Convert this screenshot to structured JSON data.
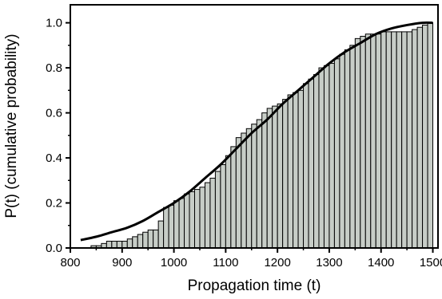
{
  "chart_data": {
    "type": "bar",
    "subtype": "cumulative histogram with fitted curve",
    "title": "",
    "xlabel": "Propagation time (t)",
    "ylabel": "P(t) (cumulative probability)",
    "xlim": [
      800,
      1510
    ],
    "ylim": [
      0,
      1.08
    ],
    "x_ticks": [
      "800",
      "900",
      "1000",
      "1100",
      "1200",
      "1300",
      "1400",
      "1500"
    ],
    "y_ticks": [
      "0.0",
      "0.2",
      "0.4",
      "0.6",
      "0.8",
      "1.0"
    ],
    "bin_width": 10,
    "bin_starts": [
      820,
      830,
      840,
      850,
      860,
      870,
      880,
      890,
      900,
      910,
      920,
      930,
      940,
      950,
      960,
      970,
      980,
      990,
      1000,
      1010,
      1020,
      1030,
      1040,
      1050,
      1060,
      1070,
      1080,
      1090,
      1100,
      1110,
      1120,
      1130,
      1140,
      1150,
      1160,
      1170,
      1180,
      1190,
      1200,
      1210,
      1220,
      1230,
      1240,
      1250,
      1260,
      1270,
      1280,
      1290,
      1300,
      1310,
      1320,
      1330,
      1340,
      1350,
      1360,
      1370,
      1380,
      1390,
      1400,
      1410,
      1420,
      1430,
      1440,
      1450,
      1460,
      1470,
      1480,
      1490
    ],
    "values": [
      0.0,
      0.0,
      0.01,
      0.01,
      0.02,
      0.03,
      0.03,
      0.03,
      0.03,
      0.04,
      0.05,
      0.06,
      0.07,
      0.08,
      0.08,
      0.12,
      0.18,
      0.19,
      0.21,
      0.22,
      0.24,
      0.25,
      0.26,
      0.27,
      0.29,
      0.31,
      0.34,
      0.37,
      0.41,
      0.45,
      0.49,
      0.51,
      0.53,
      0.55,
      0.57,
      0.6,
      0.62,
      0.63,
      0.64,
      0.66,
      0.68,
      0.69,
      0.7,
      0.73,
      0.75,
      0.77,
      0.8,
      0.81,
      0.82,
      0.84,
      0.86,
      0.88,
      0.9,
      0.93,
      0.94,
      0.95,
      0.95,
      0.95,
      0.96,
      0.96,
      0.96,
      0.96,
      0.96,
      0.96,
      0.97,
      0.98,
      0.99,
      1.0
    ],
    "fit_curve": {
      "x": [
        820,
        850,
        880,
        910,
        940,
        970,
        1000,
        1030,
        1060,
        1090,
        1120,
        1150,
        1180,
        1210,
        1240,
        1270,
        1300,
        1330,
        1360,
        1390,
        1420,
        1450,
        1480,
        1500
      ],
      "y": [
        0.035,
        0.05,
        0.07,
        0.09,
        0.12,
        0.16,
        0.2,
        0.25,
        0.31,
        0.37,
        0.44,
        0.51,
        0.57,
        0.64,
        0.7,
        0.76,
        0.82,
        0.87,
        0.91,
        0.95,
        0.975,
        0.99,
        1.0,
        1.0
      ]
    },
    "grid": false,
    "colors": {
      "bar_fill": "#c7cdc7",
      "bar_edge": "#000000",
      "curve": "#000000",
      "axis": "#000000"
    }
  }
}
